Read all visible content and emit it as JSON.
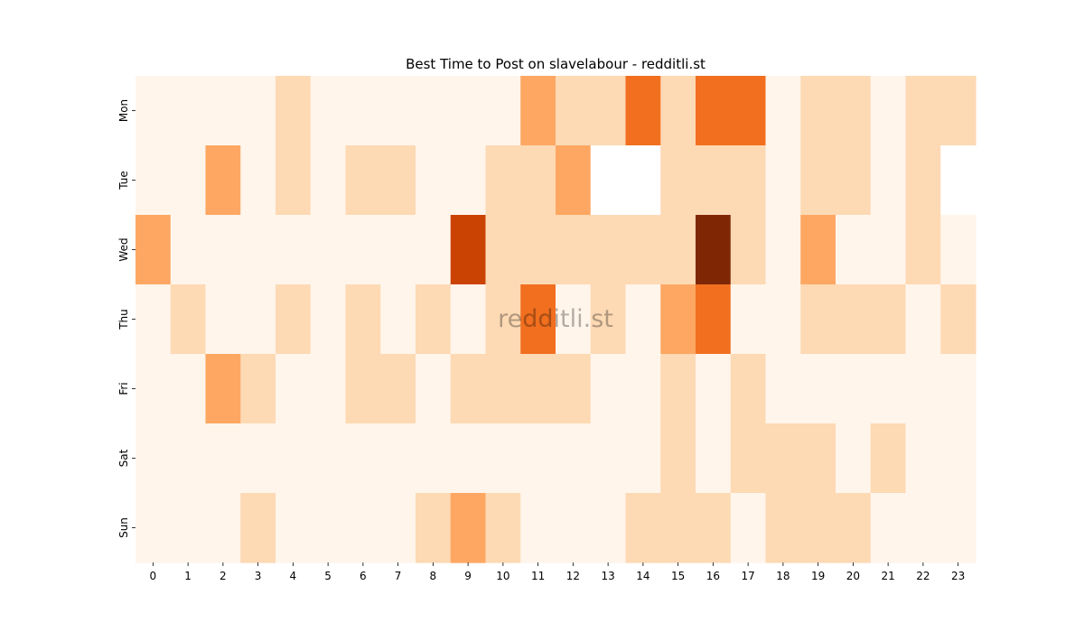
{
  "chart_data": {
    "type": "heatmap",
    "title": "Best Time to Post on slavelabour - redditli.st",
    "watermark": "redditli.st",
    "x_categories": [
      "0",
      "1",
      "2",
      "3",
      "4",
      "5",
      "6",
      "7",
      "8",
      "9",
      "10",
      "11",
      "12",
      "13",
      "14",
      "15",
      "16",
      "17",
      "18",
      "19",
      "20",
      "21",
      "22",
      "23"
    ],
    "y_categories": [
      "Mon",
      "Tue",
      "Wed",
      "Thu",
      "Fri",
      "Sat",
      "Sun"
    ],
    "values": [
      [
        0,
        0,
        0,
        0,
        1,
        0,
        0,
        0,
        0,
        0,
        0,
        2,
        1,
        1,
        3,
        1,
        3,
        3,
        0,
        1,
        1,
        0,
        1,
        1
      ],
      [
        0,
        0,
        2,
        0,
        1,
        0,
        1,
        1,
        0,
        0,
        1,
        1,
        2,
        -1,
        -1,
        1,
        1,
        1,
        0,
        1,
        1,
        0,
        1,
        -1
      ],
      [
        2,
        0,
        0,
        0,
        0,
        0,
        0,
        0,
        0,
        4,
        1,
        1,
        1,
        1,
        1,
        1,
        5,
        1,
        0,
        2,
        0,
        0,
        1,
        0
      ],
      [
        0,
        1,
        0,
        0,
        1,
        0,
        1,
        0,
        1,
        0,
        1,
        3,
        0,
        1,
        0,
        2,
        3,
        0,
        0,
        1,
        1,
        1,
        0,
        1
      ],
      [
        0,
        0,
        2,
        1,
        0,
        0,
        1,
        1,
        0,
        1,
        1,
        1,
        1,
        0,
        0,
        1,
        0,
        1,
        0,
        0,
        0,
        0,
        0,
        0
      ],
      [
        0,
        0,
        0,
        0,
        0,
        0,
        0,
        0,
        0,
        0,
        0,
        0,
        0,
        0,
        0,
        1,
        0,
        1,
        1,
        1,
        0,
        1,
        0,
        0
      ],
      [
        0,
        0,
        0,
        1,
        0,
        0,
        0,
        0,
        1,
        2,
        1,
        0,
        0,
        0,
        1,
        1,
        1,
        0,
        1,
        1,
        1,
        0,
        0,
        0
      ]
    ],
    "value_note": "-1 = no data (blank cell)",
    "palette": [
      "#fff5eb",
      "#fdd9b4",
      "#fda762",
      "#f16f1f",
      "#cb4302",
      "#7f2704"
    ],
    "blank_color": "#ffffff"
  }
}
